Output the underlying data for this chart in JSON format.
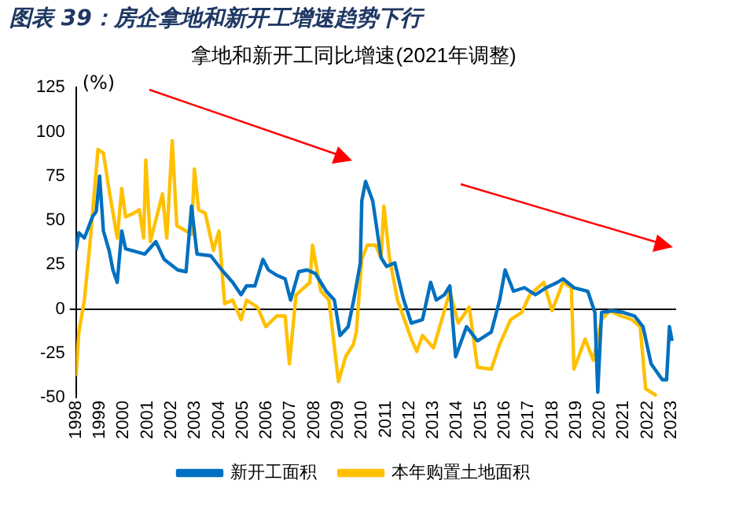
{
  "chart_data": {
    "type": "line",
    "title": "图表 39：房企拿地和新开工增速趋势下行",
    "subtitle": "拿地和新开工同比增速(2021年调整)",
    "ylabel": "(%)",
    "xlim": [
      1998,
      2023.2
    ],
    "xticks": [
      1998,
      1999,
      2000,
      2001,
      2002,
      2003,
      2004,
      2005,
      2006,
      2007,
      2008,
      2009,
      2010,
      2011,
      2012,
      2013,
      2014,
      2015,
      2016,
      2017,
      2018,
      2019,
      2020,
      2021,
      2022,
      2023
    ],
    "ylim": [
      -50,
      125
    ],
    "yticks": [
      -50,
      -25,
      0,
      25,
      50,
      75,
      100,
      125
    ],
    "legend": "bottom",
    "marker": "none",
    "line_style": "solid",
    "series": [
      {
        "name": "新开工面积",
        "color": "#0070c0",
        "x": [
          1998.0,
          1998.12,
          1998.35,
          1998.69,
          1998.85,
          1998.99,
          1999.15,
          1999.39,
          1999.55,
          1999.73,
          1999.92,
          2000.08,
          2000.89,
          2001.35,
          2001.7,
          2002.27,
          2002.62,
          2002.85,
          2003.08,
          2003.66,
          2004.12,
          2004.58,
          2004.93,
          2005.16,
          2005.51,
          2005.85,
          2006.08,
          2006.43,
          2006.78,
          2007.01,
          2007.35,
          2007.7,
          2008.05,
          2008.51,
          2008.85,
          2009.09,
          2009.43,
          2009.66,
          2009.94,
          2010.0,
          2010.16,
          2010.46,
          2010.81,
          2011.04,
          2011.39,
          2011.74,
          2012.08,
          2012.55,
          2012.89,
          2013.13,
          2013.47,
          2013.7,
          2013.94,
          2014.4,
          2014.86,
          2015.44,
          2015.79,
          2016.02,
          2016.37,
          2016.83,
          2017.29,
          2017.75,
          2018.22,
          2018.45,
          2018.91,
          2019.49,
          2019.79,
          2019.91,
          2020.07,
          2020.53,
          2020.99,
          2021.46,
          2021.81,
          2022.15,
          2022.62,
          2022.8,
          2022.92,
          2023.03
        ],
        "values": [
          33,
          43,
          40,
          52,
          55,
          75,
          44,
          33,
          22,
          15,
          44,
          34,
          31,
          38,
          28,
          22,
          21,
          58,
          31,
          30,
          22,
          15,
          8,
          13,
          13,
          28,
          22,
          19,
          17,
          5,
          21,
          22,
          20,
          10,
          5,
          -15,
          -10,
          5,
          26,
          61,
          72,
          61,
          29,
          24,
          26,
          6,
          -8,
          -6,
          15,
          5,
          8,
          13,
          -27,
          -10,
          -18,
          -13,
          5,
          22,
          10,
          12,
          8,
          12,
          15,
          17,
          12,
          10,
          -2,
          -47,
          -2,
          -1,
          -2,
          -4,
          -10,
          -31,
          -40,
          -40,
          -10,
          -18
        ]
      },
      {
        "name": "本年购置土地面积",
        "color": "#ffc000",
        "x": [
          1998.0,
          1998.12,
          1998.35,
          1998.58,
          1998.92,
          1999.15,
          1999.39,
          1999.73,
          1999.92,
          2000.08,
          2000.42,
          2000.66,
          2000.84,
          2000.93,
          2001.12,
          2001.46,
          2001.63,
          2001.81,
          2002.04,
          2002.23,
          2002.62,
          2002.85,
          2002.97,
          2003.15,
          2003.43,
          2003.77,
          2004.0,
          2004.24,
          2004.58,
          2004.93,
          2005.16,
          2005.62,
          2005.97,
          2006.43,
          2006.78,
          2006.96,
          2007.24,
          2007.82,
          2007.93,
          2008.28,
          2008.62,
          2009.02,
          2009.32,
          2009.65,
          2009.77,
          2010.0,
          2010.23,
          2010.58,
          2010.81,
          2010.93,
          2011.16,
          2011.5,
          2012.08,
          2012.31,
          2012.55,
          2013.01,
          2013.36,
          2013.7,
          2014.05,
          2014.51,
          2014.86,
          2015.44,
          2015.79,
          2016.25,
          2016.71,
          2017.06,
          2017.64,
          2017.99,
          2018.45,
          2018.8,
          2018.91,
          2019.38,
          2019.72,
          2020.07,
          2020.42,
          2020.88,
          2021.34,
          2021.69,
          2021.92,
          2022.38
        ],
        "values": [
          -38,
          -13,
          5,
          36,
          90,
          88,
          67,
          40,
          68,
          52,
          54,
          56,
          40,
          84,
          38,
          56,
          65,
          40,
          95,
          47,
          44,
          42,
          79,
          56,
          54,
          33,
          44,
          3,
          5,
          -6,
          5,
          1,
          -10,
          -4,
          -4,
          -31,
          8,
          15,
          36,
          10,
          5,
          -41,
          -27,
          -20,
          -13,
          28,
          36,
          36,
          29,
          58,
          29,
          5,
          -17,
          -24,
          -15,
          -22,
          -6,
          10,
          -8,
          1,
          -33,
          -34,
          -20,
          -6,
          -2,
          8,
          15,
          -1,
          15,
          12,
          -34,
          -17,
          -29,
          -6,
          -1,
          -4,
          -6,
          -10,
          -45,
          -49
        ]
      }
    ]
  }
}
